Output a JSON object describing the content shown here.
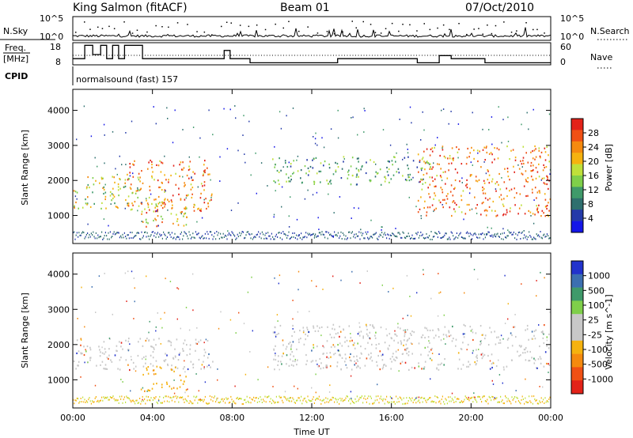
{
  "header": {
    "station": "King Salmon (fitACF)",
    "beam": "Beam 01",
    "date": "07/Oct/2010"
  },
  "strip": {
    "nsky_label": "N.Sky",
    "nsky_ticks": [
      "10^5",
      "10^0"
    ],
    "nsearch_label": "N.Search",
    "nsearch_ticks": [
      "10^5",
      "10^0"
    ],
    "freq_label_line1": "Freq.",
    "freq_label_line2": "[MHz]",
    "freq_ticks": [
      "18",
      "8"
    ],
    "nave_label": "Nave",
    "nave_ticks": [
      "60",
      "0"
    ],
    "cpid_label": "CPID",
    "cpid_text": "normalsound (fast) 157",
    "frequency_steps": [
      [
        0,
        11
      ],
      [
        0.6,
        17.5
      ],
      [
        1.0,
        13
      ],
      [
        1.4,
        17.5
      ],
      [
        1.7,
        11
      ],
      [
        2.0,
        17.5
      ],
      [
        2.3,
        11
      ],
      [
        2.6,
        17.5
      ],
      [
        3.5,
        11
      ],
      [
        7.6,
        15
      ],
      [
        7.9,
        11
      ],
      [
        8.9,
        9
      ],
      [
        13.3,
        11
      ],
      [
        17.3,
        9
      ],
      [
        18.4,
        12.5
      ],
      [
        19.0,
        11
      ],
      [
        20.7,
        9
      ],
      [
        24,
        9
      ]
    ]
  },
  "chart_data": [
    {
      "type": "heatmap",
      "parameter": "Power",
      "ylabel": "Slant Range [km]",
      "ylim": [
        200,
        4600
      ],
      "yticks": [
        1000,
        2000,
        3000,
        4000
      ],
      "xlim": [
        0,
        24
      ],
      "xticks": [
        "00:00",
        "04:00",
        "08:00",
        "12:00",
        "16:00",
        "20:00",
        "00:00"
      ],
      "colorbar": {
        "label": "Power [dB]",
        "tick_labels": [
          "28",
          "24",
          "20",
          "16",
          "12",
          "8",
          "4"
        ],
        "colors": [
          "#e32219",
          "#f05014",
          "#f58a0f",
          "#f5b20f",
          "#bfe03a",
          "#7fcf4a",
          "#3f9a6a",
          "#2e6f6e",
          "#243aa9",
          "#1416e8"
        ]
      },
      "regions": [
        {
          "t0": 0.0,
          "t1": 3.5,
          "r0": 1200,
          "r1": 2150,
          "level": "mixed"
        },
        {
          "t0": 2.7,
          "t1": 7.0,
          "r0": 1100,
          "r1": 2600,
          "level": "high"
        },
        {
          "t0": 3.4,
          "t1": 5.8,
          "r0": 700,
          "r1": 1500,
          "level": "mid"
        },
        {
          "t0": 10.0,
          "t1": 18.0,
          "r0": 1900,
          "r1": 2700,
          "level": "low"
        },
        {
          "t0": 17.3,
          "t1": 24.0,
          "r0": 1000,
          "r1": 3000,
          "level": "high"
        }
      ]
    },
    {
      "type": "heatmap",
      "parameter": "Velocity",
      "ylabel": "Slant Range [km]",
      "ylim": [
        200,
        4600
      ],
      "yticks": [
        1000,
        2000,
        3000,
        4000
      ],
      "xlim": [
        0,
        24
      ],
      "xticks": [
        "00:00",
        "04:00",
        "08:00",
        "12:00",
        "16:00",
        "20:00",
        "00:00"
      ],
      "xlabel": "Time UT",
      "colorbar": {
        "label": "Velocity [m s^-1]",
        "tick_labels": [
          "1000",
          "500",
          "100",
          "25",
          "-25",
          "-100",
          "-500",
          "-1000"
        ],
        "colors": [
          "#2233cc",
          "#3c6fb0",
          "#3f9a6a",
          "#7fcf4a",
          "#c8c8c8",
          "#c8c8c8",
          "#f5b20f",
          "#f58a0f",
          "#f05014",
          "#e32219"
        ]
      },
      "regions": [
        {
          "t0": 0.0,
          "t1": 7.0,
          "r0": 1300,
          "r1": 2200,
          "level": "grey"
        },
        {
          "t0": 3.4,
          "t1": 5.7,
          "r0": 700,
          "r1": 1400,
          "level": "orange"
        },
        {
          "t0": 10.0,
          "t1": 24.0,
          "r0": 1300,
          "r1": 2600,
          "level": "grey"
        }
      ]
    }
  ]
}
